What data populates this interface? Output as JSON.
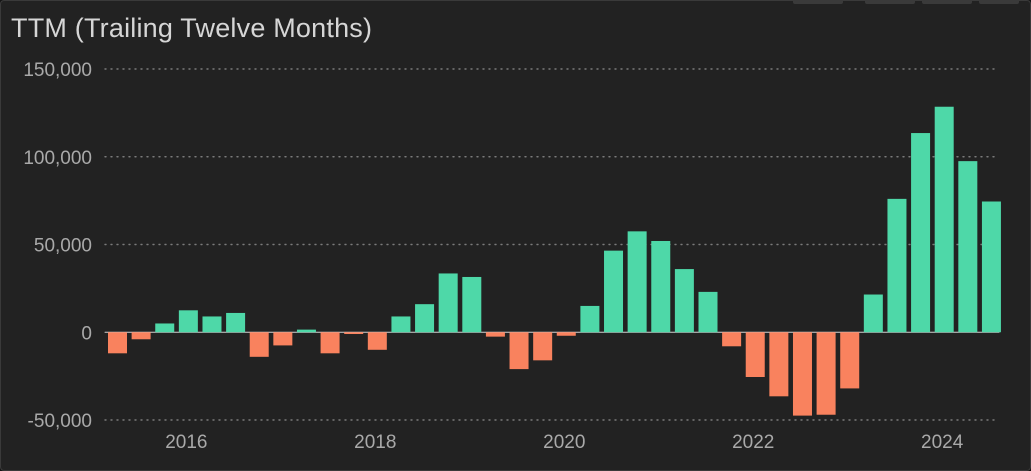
{
  "chart_data": {
    "type": "bar",
    "title": "TTM (Trailing Twelve Months)",
    "xlabel": "",
    "ylabel": "",
    "ylim": [
      -50000,
      150000
    ],
    "yticks": [
      150000,
      100000,
      50000,
      0,
      -50000
    ],
    "ytick_labels": [
      "150,000",
      "100,000",
      "50,000",
      "0",
      "-50,000"
    ],
    "xticks": [
      "2016",
      "2018",
      "2020",
      "2022",
      "2024"
    ],
    "grid": true,
    "legend": "none",
    "positive_color": "#4ed8a8",
    "negative_color": "#f9825e",
    "frequency": "quarterly",
    "x": [
      "2015-Q3",
      "2015-Q4",
      "2016-Q1",
      "2016-Q2",
      "2016-Q3",
      "2016-Q4",
      "2017-Q1",
      "2017-Q2",
      "2017-Q3",
      "2017-Q4",
      "2018-Q1",
      "2018-Q2",
      "2018-Q3",
      "2018-Q4",
      "2019-Q1",
      "2019-Q2",
      "2019-Q3",
      "2019-Q4",
      "2020-Q1",
      "2020-Q2",
      "2020-Q3",
      "2020-Q4",
      "2021-Q1",
      "2021-Q2",
      "2021-Q3",
      "2021-Q4",
      "2022-Q1",
      "2022-Q2",
      "2022-Q3",
      "2022-Q4",
      "2023-Q1",
      "2023-Q2",
      "2023-Q3",
      "2023-Q4",
      "2024-Q1",
      "2024-Q2",
      "2024-Q3",
      "2024-Q4"
    ],
    "values": [
      -12000,
      -4000,
      5000,
      12500,
      9000,
      11000,
      -14000,
      -7500,
      1500,
      -12000,
      -1000,
      -10000,
      9000,
      16000,
      33500,
      31500,
      -2500,
      -21000,
      -16000,
      -2000,
      15000,
      46500,
      57500,
      52000,
      36000,
      23000,
      -8000,
      -25500,
      -36500,
      -47500,
      -47000,
      -32000,
      21500,
      76000,
      113500,
      128500,
      97500,
      74500
    ]
  }
}
